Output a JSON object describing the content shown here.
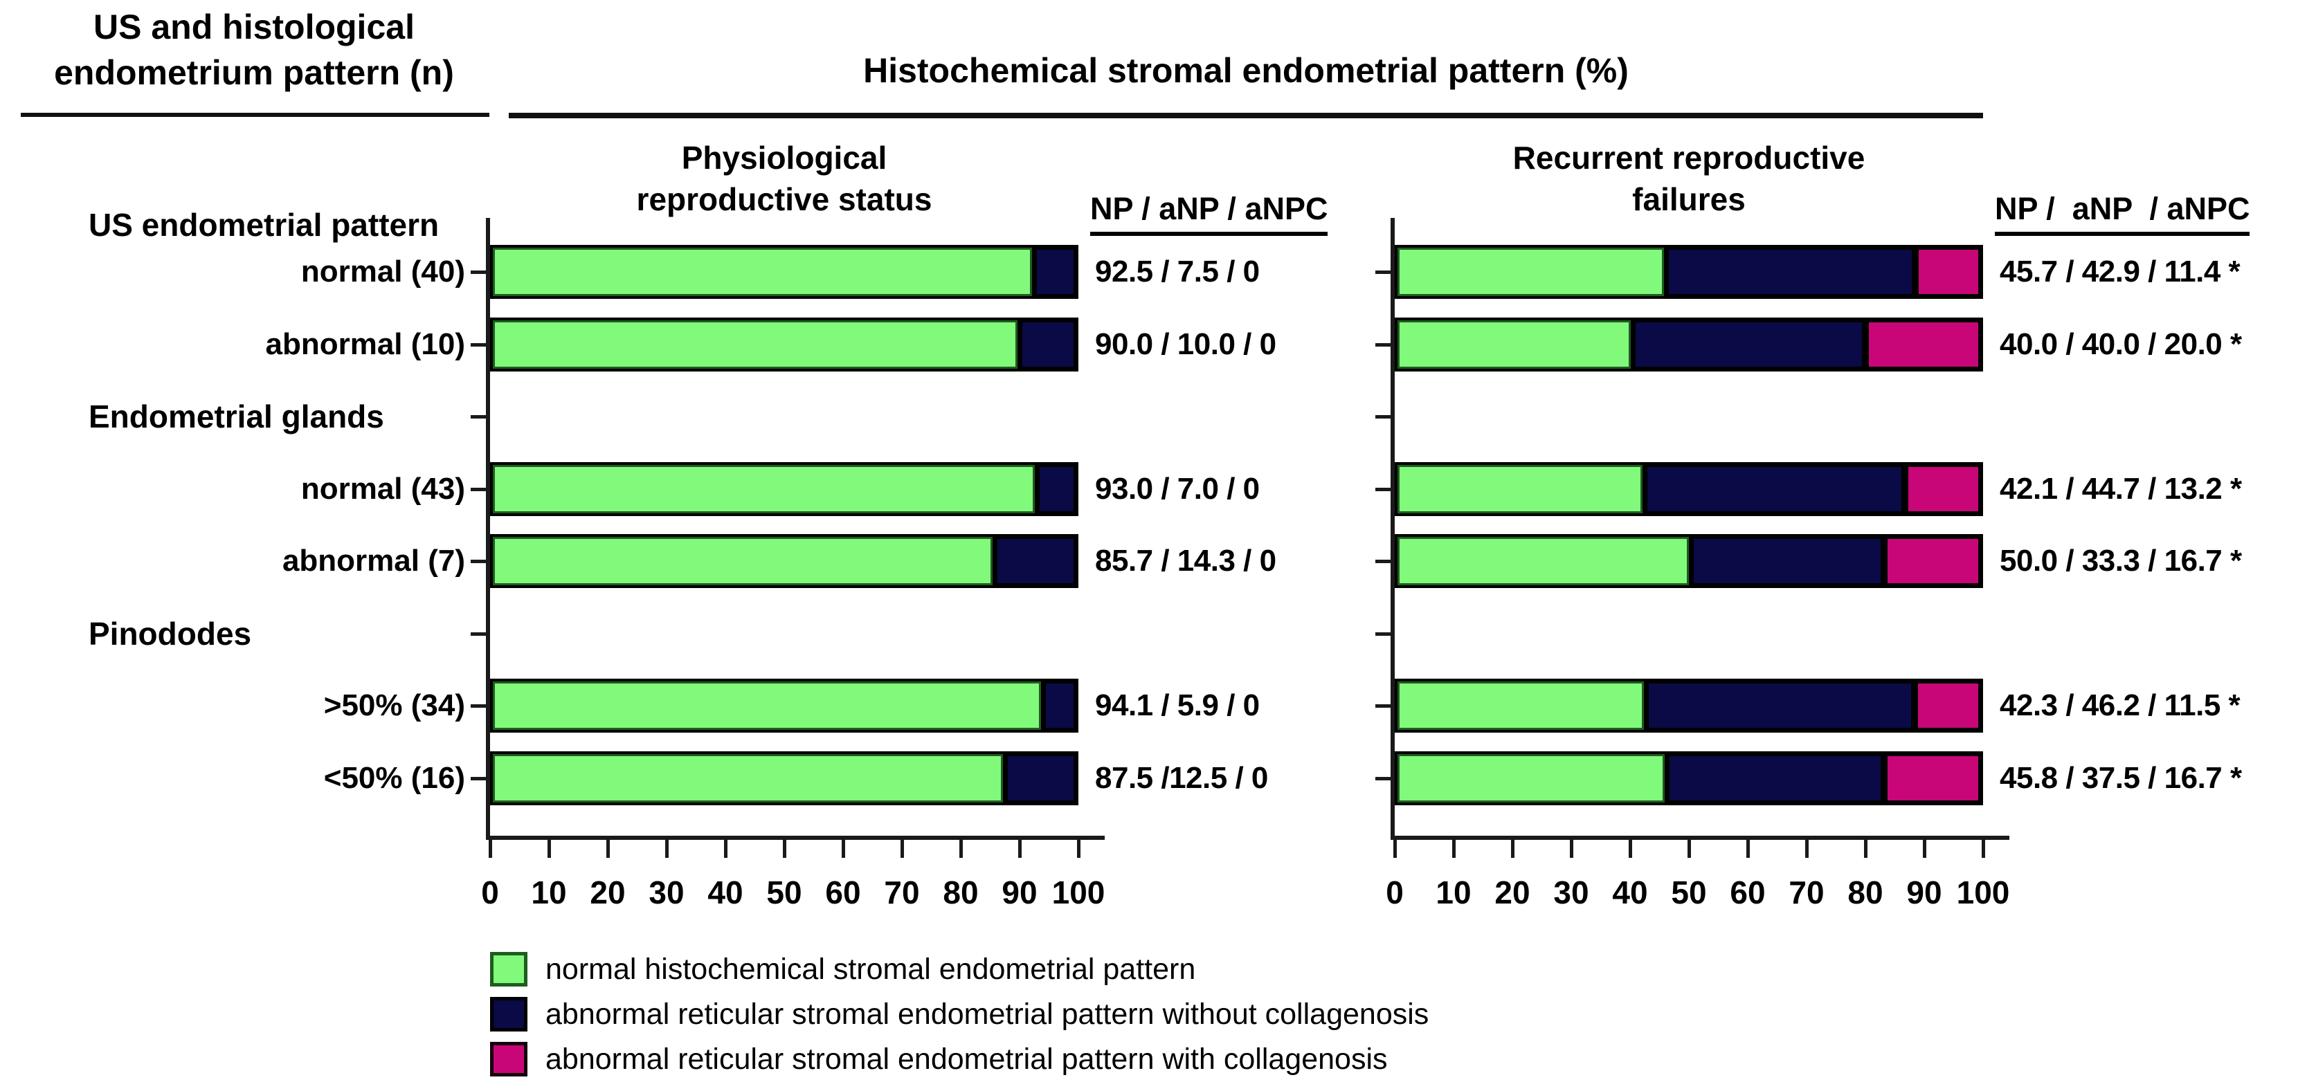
{
  "header": {
    "left_title_line1": "US and histological",
    "left_title_line2": "endometrium pattern (n)",
    "main_title": "Histochemical stromal endometrial pattern (%)"
  },
  "columns": {
    "left": {
      "subtitle_line1": "Physiological",
      "subtitle_line2": "reproductive status",
      "np_header": "NP / aNP / aNPC"
    },
    "right": {
      "subtitle_line1": "Recurrent reproductive",
      "subtitle_line2": "failures",
      "np_header": "NP /  aNP  / aNPC"
    }
  },
  "row_groups": [
    {
      "header": "US endometrial pattern",
      "items": [
        "normal (40)",
        "abnormal (10)"
      ]
    },
    {
      "header": "Endometrial glands",
      "items": [
        "normal (43)",
        "abnormal (7)"
      ]
    },
    {
      "header": "Pinododes",
      "items": [
        ">50% (34)",
        "<50% (16)"
      ]
    }
  ],
  "colors": {
    "normal_green": "#81fa7c",
    "green_border": "#1f5c1f",
    "abnormal_navy": "#0a0a46",
    "abnormal_magenta": "#c80678",
    "axis": "#1a1a1a"
  },
  "chart_data": [
    {
      "id": "physiological",
      "type": "bar",
      "orientation": "horizontal-stacked",
      "title": "Physiological reproductive status",
      "categories": [
        "normal (40)",
        "abnormal (10)",
        "normal (43)",
        "abnormal (7)",
        ">50% (34)",
        "<50% (16)"
      ],
      "series": [
        {
          "name": "normal histochemical stromal endometrial pattern",
          "abbr": "NP",
          "color": "#81fa7c",
          "border": "#1f5c1f",
          "values": [
            92.5,
            90.0,
            93.0,
            85.7,
            94.1,
            87.5
          ]
        },
        {
          "name": "abnormal reticular stromal endometrial pattern without collagenosis",
          "abbr": "aNP",
          "color": "#0a0a46",
          "border": "#000000",
          "values": [
            7.5,
            10.0,
            7.0,
            14.3,
            5.9,
            12.5
          ]
        },
        {
          "name": "abnormal reticular stromal endometrial pattern with collagenosis",
          "abbr": "aNPC",
          "color": "#c80678",
          "border": "#000000",
          "values": [
            0,
            0,
            0,
            0,
            0,
            0
          ]
        }
      ],
      "value_labels": [
        "92.5 / 7.5 / 0",
        "90.0 / 10.0 / 0",
        "93.0 / 7.0 / 0",
        "85.7 / 14.3 / 0",
        "94.1 / 5.9 / 0",
        "87.5 /12.5 / 0"
      ],
      "xlim": [
        0,
        100
      ],
      "x_ticks": [
        0,
        10,
        20,
        30,
        40,
        50,
        60,
        70,
        80,
        90,
        100
      ],
      "grid": false
    },
    {
      "id": "recurrent-reproductive-failures",
      "type": "bar",
      "orientation": "horizontal-stacked",
      "title": "Recurrent reproductive failures",
      "categories": [
        "normal (40)",
        "abnormal (10)",
        "normal (43)",
        "abnormal (7)",
        ">50% (34)",
        "<50% (16)"
      ],
      "series": [
        {
          "name": "normal histochemical stromal endometrial pattern",
          "abbr": "NP",
          "color": "#81fa7c",
          "border": "#1f5c1f",
          "values": [
            45.7,
            40.0,
            42.1,
            50.0,
            42.3,
            45.8
          ]
        },
        {
          "name": "abnormal reticular stromal endometrial pattern without collagenosis",
          "abbr": "aNP",
          "color": "#0a0a46",
          "border": "#000000",
          "values": [
            42.9,
            40.0,
            44.7,
            33.3,
            46.2,
            37.5
          ]
        },
        {
          "name": "abnormal reticular stromal endometrial pattern with collagenosis",
          "abbr": "aNPC",
          "color": "#c80678",
          "border": "#000000",
          "values": [
            11.4,
            20.0,
            13.2,
            16.7,
            11.5,
            16.7
          ]
        }
      ],
      "value_labels": [
        "45.7 / 42.9 / 11.4 *",
        "40.0 / 40.0 / 20.0 *",
        "42.1 / 44.7 / 13.2 *",
        "50.0 / 33.3 / 16.7 *",
        "42.3 / 46.2 / 11.5 *",
        "45.8 / 37.5 / 16.7 *"
      ],
      "xlim": [
        0,
        100
      ],
      "x_ticks": [
        0,
        10,
        20,
        30,
        40,
        50,
        60,
        70,
        80,
        90,
        100
      ],
      "grid": false
    }
  ],
  "legend": {
    "items": [
      {
        "color": "#81fa7c",
        "border": "#1f5c1f",
        "label": "normal histochemical stromal endometrial pattern"
      },
      {
        "color": "#0a0a46",
        "border": "#000000",
        "label": "abnormal reticular stromal endometrial pattern without collagenosis"
      },
      {
        "color": "#c80678",
        "border": "#14000c",
        "label": "abnormal reticular stromal endometrial pattern with collagenosis"
      }
    ]
  }
}
